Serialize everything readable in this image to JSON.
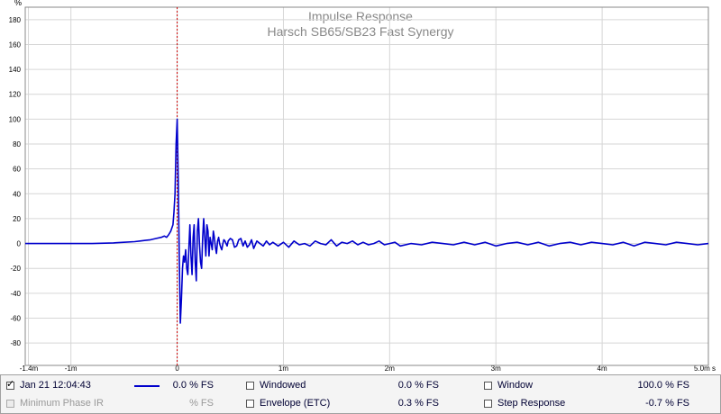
{
  "chart_data": {
    "type": "line",
    "title": "Impulse Response",
    "subtitle": "Harsch SB65/SB23 Fast Synergy",
    "ylabel": "%",
    "xunit": "s",
    "ylim": [
      -98,
      190
    ],
    "xlim": [
      -1.43,
      5.0
    ],
    "xticks": [
      {
        "value": -1.4,
        "label": "-1.4m"
      },
      {
        "value": -1,
        "label": "-1m"
      },
      {
        "value": 0,
        "label": "0"
      },
      {
        "value": 1,
        "label": "1m"
      },
      {
        "value": 2,
        "label": "2m"
      },
      {
        "value": 3,
        "label": "3m"
      },
      {
        "value": 4,
        "label": "4m"
      },
      {
        "value": 5,
        "label": "5.0m s"
      }
    ],
    "yticks": [
      180,
      160,
      140,
      120,
      100,
      80,
      60,
      40,
      20,
      0,
      -20,
      -40,
      -60,
      -80
    ],
    "grid": true,
    "marker_line_x": 0,
    "series": [
      {
        "color": "#0000cc",
        "x": [
          -1.43,
          -1.0,
          -0.8,
          -0.6,
          -0.5,
          -0.4,
          -0.35,
          -0.3,
          -0.25,
          -0.2,
          -0.15,
          -0.12,
          -0.1,
          -0.08,
          -0.06,
          -0.04,
          -0.03,
          -0.02,
          -0.01,
          0.0,
          0.01,
          0.02,
          0.03,
          0.04,
          0.05,
          0.06,
          0.07,
          0.08,
          0.09,
          0.1,
          0.11,
          0.12,
          0.13,
          0.14,
          0.15,
          0.16,
          0.17,
          0.18,
          0.19,
          0.2,
          0.21,
          0.22,
          0.23,
          0.24,
          0.25,
          0.26,
          0.27,
          0.28,
          0.29,
          0.3,
          0.31,
          0.32,
          0.33,
          0.34,
          0.35,
          0.36,
          0.37,
          0.38,
          0.39,
          0.4,
          0.41,
          0.42,
          0.43,
          0.44,
          0.45,
          0.46,
          0.47,
          0.48,
          0.5,
          0.52,
          0.54,
          0.56,
          0.58,
          0.6,
          0.62,
          0.64,
          0.66,
          0.68,
          0.7,
          0.72,
          0.75,
          0.78,
          0.81,
          0.84,
          0.87,
          0.9,
          0.95,
          1.0,
          1.05,
          1.1,
          1.15,
          1.2,
          1.25,
          1.3,
          1.35,
          1.4,
          1.45,
          1.5,
          1.55,
          1.6,
          1.65,
          1.7,
          1.75,
          1.8,
          1.85,
          1.9,
          1.95,
          2.0,
          2.05,
          2.1,
          2.2,
          2.3,
          2.4,
          2.5,
          2.6,
          2.7,
          2.8,
          2.9,
          3.0,
          3.1,
          3.2,
          3.3,
          3.4,
          3.5,
          3.6,
          3.7,
          3.8,
          3.9,
          4.0,
          4.1,
          4.2,
          4.3,
          4.4,
          4.5,
          4.6,
          4.7,
          4.8,
          4.9,
          5.0
        ],
        "y": [
          0,
          0,
          0,
          0.5,
          1,
          1.5,
          2,
          2.5,
          3,
          4,
          5,
          6,
          5,
          7,
          10,
          15,
          25,
          40,
          80,
          100,
          50,
          -10,
          -64,
          -45,
          -20,
          -10,
          -15,
          -5,
          -20,
          -25,
          -5,
          15,
          -10,
          -25,
          5,
          15,
          -15,
          -30,
          10,
          20,
          0,
          -15,
          -20,
          5,
          20,
          5,
          -10,
          15,
          10,
          -10,
          5,
          0,
          -5,
          10,
          5,
          -3,
          -8,
          2,
          5,
          0,
          -3,
          -5,
          0,
          3,
          2,
          0,
          -2,
          2,
          4,
          3,
          -3,
          -2,
          3,
          4,
          -2,
          2,
          -3,
          -1,
          3,
          -4,
          2,
          0,
          -2,
          2,
          -1,
          1,
          -2,
          1,
          -3,
          2,
          -1,
          0,
          -2,
          2,
          0,
          -1,
          3,
          -2,
          1,
          0,
          2,
          -1,
          1,
          -1,
          0,
          2,
          -1,
          0,
          1,
          -2,
          0,
          -1,
          1,
          0,
          -1,
          1,
          -1,
          1,
          -2,
          0,
          1,
          -1,
          1,
          -2,
          0,
          1,
          -1,
          1,
          0,
          -1,
          1,
          -2,
          1,
          0,
          -1,
          1,
          0,
          -1,
          0
        ]
      }
    ]
  },
  "legend": {
    "row1": {
      "timestamp": "Jan 21 12:04:43",
      "value": "0.0 % FS",
      "windowed_label": "Windowed",
      "windowed_value": "0.0 % FS",
      "window_label": "Window",
      "window_value": "100.0 % FS"
    },
    "row2": {
      "min_phase_label": "Minimum Phase IR",
      "min_phase_value": "% FS",
      "envelope_label": "Envelope (ETC)",
      "envelope_value": "0.3 % FS",
      "step_label": "Step Response",
      "step_value": "-0.7 % FS"
    }
  }
}
